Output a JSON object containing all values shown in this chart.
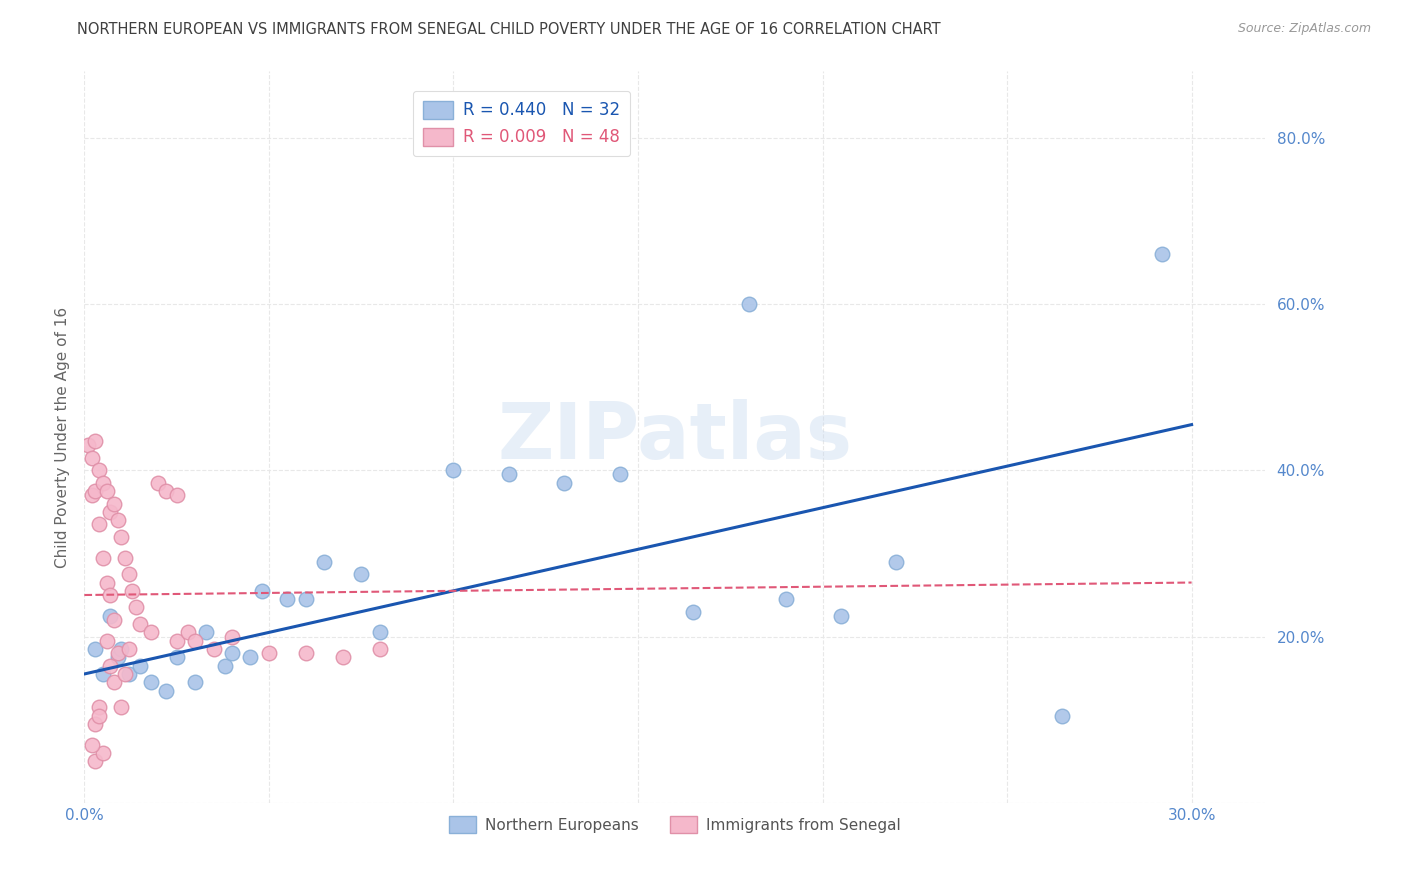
{
  "title": "NORTHERN EUROPEAN VS IMMIGRANTS FROM SENEGAL CHILD POVERTY UNDER THE AGE OF 16 CORRELATION CHART",
  "source": "Source: ZipAtlas.com",
  "ylabel": "Child Poverty Under the Age of 16",
  "watermark": "ZIPatlas",
  "legend_label_blue": "Northern Europeans",
  "legend_label_pink": "Immigrants from Senegal",
  "xlim": [
    0.0,
    0.32
  ],
  "ylim": [
    0.0,
    0.88
  ],
  "blue_color": "#aac4e8",
  "pink_color": "#f5b8cb",
  "blue_line_color": "#1a56b0",
  "pink_line_color": "#e05878",
  "grid_color": "#e8e8e8",
  "title_color": "#404040",
  "tick_color": "#5588cc",
  "bg_color": "#ffffff",
  "blue_x": [
    0.003,
    0.005,
    0.007,
    0.009,
    0.01,
    0.012,
    0.015,
    0.018,
    0.022,
    0.025,
    0.03,
    0.033,
    0.038,
    0.04,
    0.045,
    0.048,
    0.055,
    0.06,
    0.065,
    0.075,
    0.08,
    0.1,
    0.115,
    0.13,
    0.145,
    0.165,
    0.18,
    0.19,
    0.205,
    0.22,
    0.265,
    0.292
  ],
  "blue_y": [
    0.185,
    0.155,
    0.225,
    0.175,
    0.185,
    0.155,
    0.165,
    0.145,
    0.135,
    0.175,
    0.145,
    0.205,
    0.165,
    0.18,
    0.175,
    0.255,
    0.245,
    0.245,
    0.29,
    0.275,
    0.205,
    0.4,
    0.395,
    0.385,
    0.395,
    0.23,
    0.6,
    0.245,
    0.225,
    0.29,
    0.105,
    0.66
  ],
  "pink_x": [
    0.001,
    0.002,
    0.002,
    0.003,
    0.003,
    0.003,
    0.004,
    0.004,
    0.004,
    0.005,
    0.005,
    0.006,
    0.006,
    0.006,
    0.007,
    0.007,
    0.007,
    0.008,
    0.008,
    0.008,
    0.009,
    0.009,
    0.01,
    0.01,
    0.011,
    0.011,
    0.012,
    0.012,
    0.013,
    0.014,
    0.015,
    0.018,
    0.02,
    0.022,
    0.025,
    0.025,
    0.028,
    0.03,
    0.035,
    0.04,
    0.05,
    0.06,
    0.07,
    0.08,
    0.003,
    0.004,
    0.005,
    0.002
  ],
  "pink_y": [
    0.43,
    0.415,
    0.37,
    0.435,
    0.375,
    0.095,
    0.4,
    0.335,
    0.115,
    0.385,
    0.295,
    0.375,
    0.265,
    0.195,
    0.35,
    0.25,
    0.165,
    0.36,
    0.22,
    0.145,
    0.34,
    0.18,
    0.32,
    0.115,
    0.295,
    0.155,
    0.275,
    0.185,
    0.255,
    0.235,
    0.215,
    0.205,
    0.385,
    0.375,
    0.195,
    0.37,
    0.205,
    0.195,
    0.185,
    0.2,
    0.18,
    0.18,
    0.175,
    0.185,
    0.05,
    0.105,
    0.06,
    0.07
  ]
}
